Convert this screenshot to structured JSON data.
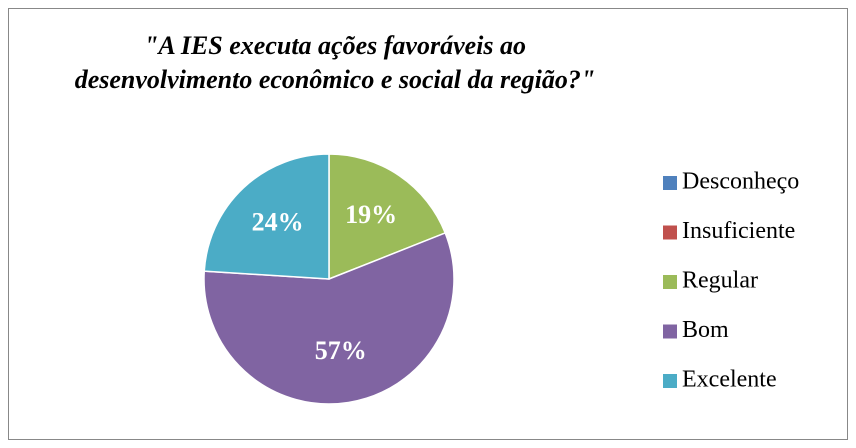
{
  "chart_data": {
    "type": "pie",
    "title": [
      "\"A IES executa ações favoráveis ao",
      "desenvolvimento econômico e social da região?\""
    ],
    "categories": [
      "Desconheço",
      "Insuficiente",
      "Regular",
      "Bom",
      "Excelente"
    ],
    "values": [
      0,
      0,
      19,
      57,
      24
    ],
    "value_labels": [
      null,
      null,
      "19%",
      "57%",
      "24%"
    ],
    "colors": [
      "#4f81bd",
      "#c0504d",
      "#9bbb59",
      "#8064a2",
      "#4bacc6"
    ],
    "legend": "right"
  }
}
